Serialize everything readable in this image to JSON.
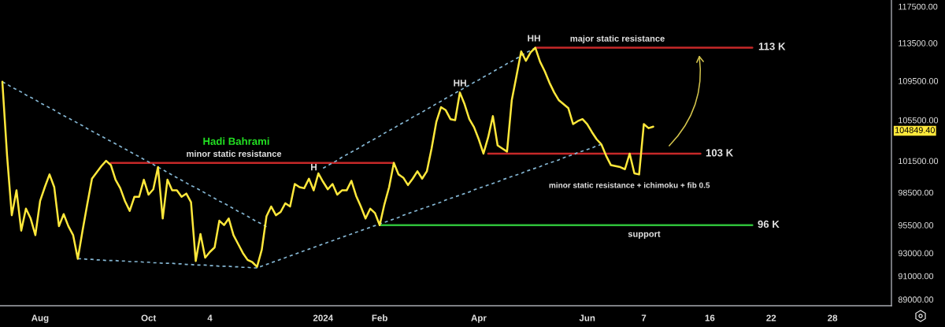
{
  "chart_data": {
    "type": "line",
    "log": "y",
    "categories": [
      null,
      null,
      null,
      null,
      null,
      null,
      null,
      null,
      "Aug",
      null,
      null,
      null,
      null,
      null,
      null,
      null,
      null,
      null,
      null,
      null,
      null,
      null,
      null,
      null,
      null,
      null,
      null,
      null,
      null,
      null,
      null,
      "Oct",
      null,
      null,
      null,
      null,
      null,
      null,
      null,
      null,
      null,
      null,
      null,
      null,
      "4",
      null,
      null,
      null,
      null,
      null,
      null,
      null,
      null,
      null,
      null,
      null,
      null,
      null,
      null,
      null,
      null,
      null,
      null,
      null,
      null,
      null,
      null,
      null,
      "2024",
      null,
      null,
      null,
      null,
      null,
      null,
      null,
      null,
      null,
      null,
      null,
      "Feb",
      null,
      null,
      null,
      null,
      null,
      null,
      null,
      null,
      null,
      null,
      null,
      null,
      null,
      null,
      null,
      null,
      null,
      null,
      null,
      null,
      "Apr",
      null,
      null,
      null,
      null,
      null,
      null,
      null,
      null,
      null,
      null,
      null,
      null,
      null,
      null,
      null,
      null,
      null,
      null,
      null,
      null,
      null,
      null,
      "Jun",
      null,
      null,
      null,
      null,
      null,
      null,
      null,
      null,
      null,
      null,
      null,
      "7",
      null,
      null,
      null,
      null,
      null,
      null,
      null,
      null,
      null,
      null,
      null,
      null,
      null,
      "16",
      null,
      null,
      null,
      null,
      null,
      null,
      null,
      null,
      null,
      null,
      null,
      null,
      "22",
      null,
      null,
      null,
      null,
      null,
      null,
      null,
      null,
      null,
      null,
      null,
      null,
      "28",
      null,
      null,
      null,
      null,
      null,
      null,
      null,
      null,
      null,
      null,
      null,
      null
    ],
    "ylim": [
      88470,
      118230
    ],
    "yticks": [
      {
        "value": 117500,
        "label": "117500.00"
      },
      {
        "value": 113500,
        "label": "113500.00"
      },
      {
        "value": 109500,
        "label": "109500.00"
      },
      {
        "value": 105500,
        "label": "105500.00"
      },
      {
        "value": 101500,
        "label": "101500.00"
      },
      {
        "value": 98500,
        "label": "98500.00"
      },
      {
        "value": 95500,
        "label": "95500.00"
      },
      {
        "value": 93000,
        "label": "93000.00"
      },
      {
        "value": 91000,
        "label": "91000.00"
      },
      {
        "value": 89000,
        "label": "89000.00"
      }
    ],
    "series": [
      {
        "color": "#c62828",
        "values": [
          null,
          null,
          null,
          null,
          null,
          null,
          null,
          null,
          null,
          null,
          null,
          null,
          null,
          null,
          null,
          null,
          null,
          null,
          null,
          null,
          null,
          null,
          null,
          101300,
          101300,
          101300,
          101300,
          101300,
          101300,
          101300,
          101300,
          101300,
          101300,
          101300,
          101300,
          101300,
          101300,
          101300,
          101300,
          101300,
          101300,
          101300,
          101300,
          101300,
          101300,
          101300,
          101300,
          101300,
          101300,
          101300,
          101300,
          101300,
          101300,
          101300,
          101300,
          101300,
          101300,
          101300,
          101300,
          101300,
          101300,
          101300,
          101300,
          101300,
          101300,
          101300,
          101300,
          101300,
          101300,
          101300,
          101300,
          101300,
          101300,
          101300,
          101300,
          101300,
          101300,
          101300,
          101300,
          101300,
          101300,
          101300,
          101300,
          101300,
          null,
          null,
          null,
          null,
          null,
          null,
          null,
          null,
          null,
          null,
          null,
          null,
          null,
          null,
          null,
          null,
          null,
          null,
          null,
          102200,
          102200,
          102200,
          102200,
          102200,
          102200,
          102200,
          102200,
          102200,
          102200,
          102200,
          102200,
          102200,
          102200,
          102200,
          102200,
          102200,
          102200,
          102200,
          102200,
          102200,
          102200,
          102200,
          102200,
          102200,
          102200,
          102200,
          102200,
          102200,
          102200,
          102200,
          102200,
          102200,
          102200,
          102200,
          102200,
          102200,
          102200,
          102200,
          102200,
          102200,
          102200,
          102200,
          102200,
          102200,
          102200,
          null,
          null,
          null,
          null,
          null,
          null,
          null,
          null,
          null,
          null,
          null,
          null,
          null,
          null,
          null,
          null,
          null,
          null,
          null,
          null,
          null,
          null,
          null,
          null,
          null,
          null,
          null,
          null,
          null,
          null,
          null,
          null,
          null,
          null,
          null,
          null,
          null,
          null,
          null,
          null
        ]
      },
      {
        "color": "#c62828",
        "values": [
          null,
          null,
          null,
          null,
          null,
          null,
          null,
          null,
          null,
          null,
          null,
          null,
          null,
          null,
          null,
          null,
          null,
          null,
          null,
          null,
          null,
          null,
          null,
          null,
          null,
          null,
          null,
          null,
          null,
          null,
          null,
          null,
          null,
          null,
          null,
          null,
          null,
          null,
          null,
          null,
          null,
          null,
          null,
          null,
          null,
          null,
          null,
          null,
          null,
          null,
          null,
          null,
          null,
          null,
          null,
          null,
          null,
          null,
          null,
          null,
          null,
          null,
          null,
          null,
          null,
          null,
          null,
          null,
          null,
          null,
          null,
          null,
          null,
          null,
          null,
          null,
          null,
          null,
          null,
          null,
          null,
          null,
          null,
          null,
          null,
          null,
          null,
          null,
          null,
          null,
          null,
          null,
          null,
          null,
          null,
          null,
          null,
          null,
          null,
          null,
          null,
          null,
          null,
          null,
          null,
          null,
          null,
          null,
          null,
          null,
          null,
          null,
          null,
          113000,
          113000,
          113000,
          113000,
          113000,
          113000,
          113000,
          113000,
          113000,
          113000,
          113000,
          113000,
          113000,
          113000,
          113000,
          113000,
          113000,
          113000,
          113000,
          113000,
          113000,
          113000,
          113000,
          113000,
          113000,
          113000,
          113000,
          113000,
          113000,
          113000,
          113000,
          113000,
          113000,
          113000,
          113000,
          113000,
          113000,
          113000,
          113000,
          113000,
          113000,
          113000,
          113000,
          113000,
          113000,
          113000,
          113000,
          null,
          null,
          null,
          null,
          null,
          null,
          null,
          null,
          null,
          null,
          null,
          null,
          null,
          null,
          null,
          null,
          null,
          null,
          null,
          null,
          null,
          null,
          null,
          null,
          null,
          null,
          null,
          null,
          null
        ]
      },
      {
        "color": "#2fbf3a",
        "values": [
          null,
          null,
          null,
          null,
          null,
          null,
          null,
          null,
          null,
          null,
          null,
          null,
          null,
          null,
          null,
          null,
          null,
          null,
          null,
          null,
          null,
          null,
          null,
          null,
          null,
          null,
          null,
          null,
          null,
          null,
          null,
          null,
          null,
          null,
          null,
          null,
          null,
          null,
          null,
          null,
          null,
          null,
          null,
          null,
          null,
          null,
          null,
          null,
          null,
          null,
          null,
          null,
          null,
          null,
          null,
          null,
          null,
          null,
          null,
          null,
          null,
          null,
          null,
          null,
          null,
          null,
          null,
          null,
          null,
          null,
          null,
          null,
          null,
          null,
          null,
          null,
          null,
          null,
          null,
          null,
          95500,
          95500,
          95500,
          95500,
          95500,
          95500,
          95500,
          95500,
          95500,
          95500,
          95500,
          95500,
          95500,
          95500,
          95500,
          95500,
          95500,
          95500,
          95500,
          95500,
          95500,
          95500,
          95500,
          95500,
          95500,
          95500,
          95500,
          95500,
          95500,
          95500,
          95500,
          95500,
          95500,
          95500,
          95500,
          95500,
          95500,
          95500,
          95500,
          95500,
          95500,
          95500,
          95500,
          95500,
          95500,
          95500,
          95500,
          95500,
          95500,
          95500,
          95500,
          95500,
          95500,
          95500,
          95500,
          95500,
          95500,
          95500,
          95500,
          95500,
          95500,
          95500,
          95500,
          95500,
          95500,
          95500,
          95500,
          95500,
          95500,
          95500,
          95500,
          95500,
          95500,
          95500,
          95500,
          95500,
          95500,
          95500,
          95500,
          95500,
          null,
          null,
          null,
          null,
          null,
          null,
          null,
          null,
          null,
          null,
          null,
          null,
          null,
          null,
          null,
          null,
          null,
          null,
          null,
          null,
          null,
          null,
          null,
          null,
          null,
          null,
          null,
          null,
          null
        ]
      },
      {
        "color": "#85b7d4",
        "line_style": "dashed",
        "values": [
          null,
          null,
          null,
          null,
          null,
          null,
          null,
          null,
          null,
          null,
          null,
          null,
          null,
          null,
          null,
          null,
          92500,
          92500,
          92450,
          92450,
          92400,
          92400,
          92350,
          92350,
          92350,
          92300,
          92300,
          92250,
          92250,
          92250,
          92200,
          92200,
          92150,
          92150,
          92100,
          92100,
          92100,
          92050,
          92050,
          92000,
          92000,
          91950,
          91950,
          91950,
          91900,
          91900,
          91850,
          91850,
          91850,
          91800,
          91800,
          91750,
          91750,
          91700,
          91700,
          91850,
          92000,
          92150,
          92300,
          92450,
          92600,
          92750,
          92900,
          93050,
          93200,
          93350,
          93500,
          93650,
          93800,
          93950,
          94100,
          94250,
          94400,
          94550,
          94700,
          94850,
          95000,
          95150,
          95300,
          95450,
          95600,
          95750,
          95900,
          96050,
          96200,
          96400,
          96550,
          96700,
          96850,
          97000,
          97150,
          97300,
          97450,
          97600,
          97800,
          97950,
          98100,
          98250,
          98400,
          98550,
          98750,
          98900,
          99050,
          99200,
          99350,
          99500,
          99700,
          99850,
          100000,
          100150,
          100300,
          100500,
          100650,
          100800,
          100950,
          101150,
          101300,
          101450,
          101600,
          101800,
          101950,
          102100,
          102300,
          102450,
          102600,
          102750,
          102950,
          103100,
          null,
          null,
          null,
          null,
          null,
          null,
          null,
          null,
          null,
          null,
          null,
          null,
          null,
          null,
          null,
          null,
          null,
          null,
          null,
          null,
          null,
          null,
          null,
          null,
          null,
          null,
          null,
          null,
          null,
          null,
          null,
          null,
          null,
          null,
          null,
          null,
          null,
          null,
          null,
          null,
          null,
          null,
          null,
          null,
          null,
          null,
          null,
          null,
          null,
          null,
          null,
          null,
          null,
          null,
          null,
          null,
          null,
          null,
          null,
          null,
          null
        ]
      },
      {
        "color": "#85b7d4",
        "line_style": "dashed",
        "values": [
          109400,
          109150,
          108850,
          108600,
          108350,
          108050,
          107800,
          107550,
          107250,
          107000,
          106750,
          106500,
          106200,
          105950,
          105700,
          105450,
          105200,
          104950,
          104650,
          104400,
          104150,
          103900,
          103650,
          103400,
          103150,
          102900,
          102650,
          102400,
          102150,
          101900,
          101650,
          101400,
          101150,
          100900,
          100650,
          100400,
          100150,
          99900,
          99650,
          99400,
          99150,
          98950,
          98700,
          98450,
          98200,
          97950,
          97700,
          97500,
          97250,
          97000,
          96750,
          96550,
          96300,
          96050,
          95800,
          95600,
          95350,
          null,
          null,
          null,
          null,
          null,
          null,
          null,
          null,
          null,
          null,
          null,
          100800,
          101050,
          101300,
          101550,
          101850,
          102100,
          102350,
          102600,
          102850,
          103150,
          103400,
          103650,
          103900,
          104200,
          104450,
          104700,
          105000,
          105250,
          105500,
          105800,
          106050,
          106300,
          106600,
          106850,
          107150,
          107400,
          107700,
          107950,
          108250,
          108500,
          108800,
          109050,
          109350,
          109600,
          109900,
          110150,
          110450,
          110750,
          111000,
          111300,
          111550,
          111850,
          112150,
          112450,
          112700,
          113000,
          null,
          null,
          null,
          null,
          null,
          null,
          null,
          null,
          null,
          null,
          null,
          null,
          null,
          null,
          null,
          null,
          null,
          null,
          null,
          null,
          null,
          null,
          null,
          null,
          null,
          null,
          null,
          null,
          null,
          null,
          null,
          null,
          null,
          null,
          null,
          null,
          null,
          null,
          null,
          null,
          null,
          null,
          null,
          null,
          null,
          null,
          null,
          null,
          null,
          null,
          null,
          null,
          null,
          null,
          null,
          null,
          null,
          null,
          null,
          null,
          null,
          null,
          null,
          null,
          null,
          null,
          null,
          null,
          null,
          null,
          null,
          null,
          null,
          null,
          null
        ]
      },
      {
        "color": "#ffe83b",
        "values": [
          109400,
          102000,
          96400,
          98700,
          95000,
          97000,
          96100,
          94600,
          97700,
          99000,
          100200,
          99000,
          95400,
          96500,
          95400,
          94600,
          92500,
          95000,
          97400,
          99800,
          100400,
          101000,
          101500,
          101100,
          99700,
          98900,
          97700,
          96800,
          98100,
          98100,
          99700,
          98300,
          98800,
          100900,
          96100,
          99700,
          98700,
          98700,
          98100,
          98400,
          97600,
          92300,
          94700,
          92600,
          93100,
          93500,
          95900,
          95500,
          96100,
          94600,
          93800,
          93000,
          92400,
          92200,
          91800,
          93300,
          96300,
          97200,
          96400,
          96700,
          97500,
          97200,
          99300,
          99000,
          98900,
          99800,
          98700,
          100300,
          99500,
          98800,
          99300,
          98300,
          98700,
          98700,
          99600,
          98200,
          97200,
          96100,
          97000,
          96600,
          95500,
          97400,
          99000,
          101300,
          100200,
          99900,
          99200,
          99800,
          100500,
          99800,
          100500,
          102700,
          105300,
          106800,
          106500,
          105600,
          105500,
          108300,
          107100,
          105600,
          104800,
          103600,
          102200,
          103800,
          105900,
          103000,
          102700,
          102400,
          107500,
          110000,
          112600,
          111600,
          112500,
          113000,
          111500,
          110500,
          109300,
          108300,
          107500,
          107100,
          106700,
          105100,
          105400,
          105600,
          105100,
          104300,
          103600,
          103100,
          102000,
          101100,
          101000,
          100900,
          100700,
          102200,
          100300,
          100200,
          105100,
          104700,
          104849.4,
          null,
          null,
          null,
          null,
          null,
          null,
          null,
          null,
          null,
          null,
          null,
          null,
          null,
          null,
          null,
          null,
          null,
          null,
          null,
          null,
          null,
          null,
          null,
          null,
          null,
          null,
          null,
          null,
          null,
          null,
          null,
          null,
          null,
          null,
          null,
          null,
          null,
          null,
          null,
          null,
          null,
          null,
          null,
          null,
          null,
          null,
          null,
          null,
          null,
          null
        ]
      }
    ],
    "annotations": [
      "Hadi Bahrami",
      {
        "text": "minor static resistance",
        "y": 101300
      },
      {
        "text": "H",
        "y": 100300
      },
      {
        "text": "HH",
        "y": 108300
      },
      {
        "text": "HH",
        "y": 113000
      },
      {
        "text": "major static resistance",
        "y": 113000
      },
      "113 K",
      "103 K",
      "minor static resistance + ichimoku + fib 0.5",
      {
        "text": "support",
        "y": 95500
      },
      "96 K",
      "104849.40"
    ]
  }
}
